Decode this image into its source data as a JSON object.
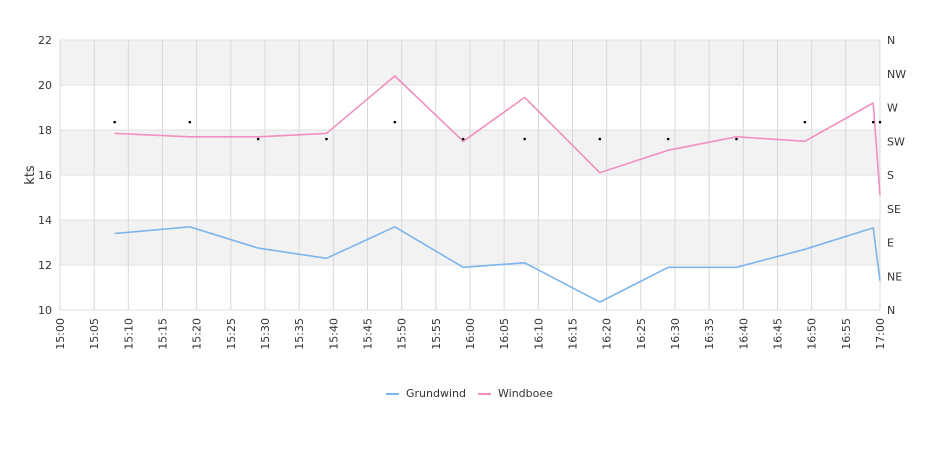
{
  "chart_data": {
    "type": "line",
    "ylabel": "kts",
    "ylim": [
      10,
      22
    ],
    "y_ticks": [
      "10",
      "12",
      "14",
      "16",
      "18",
      "20",
      "22"
    ],
    "x_ticks": [
      "15:00",
      "15:05",
      "15:10",
      "15:15",
      "15:20",
      "15:25",
      "15:30",
      "15:35",
      "15:40",
      "15:45",
      "15:50",
      "15:55",
      "16:00",
      "16:05",
      "16:10",
      "16:15",
      "16:20",
      "16:25",
      "16:30",
      "16:35",
      "16:40",
      "16:45",
      "16:50",
      "16:55",
      "17:00"
    ],
    "x_range_minutes": [
      0,
      120
    ],
    "right_axis_labels": [
      "N",
      "NE",
      "E",
      "SE",
      "S",
      "SW",
      "W",
      "NW",
      "N"
    ],
    "grid": true,
    "alternating_bands": true,
    "legend_position": "bottom-center",
    "series": [
      {
        "name": "Grundwind",
        "color": "#7cb5ec",
        "x": [
          8,
          19,
          29,
          39,
          49,
          59,
          68,
          79,
          89,
          99,
          109,
          119,
          120
        ],
        "values": [
          13.4,
          13.7,
          12.75,
          12.3,
          13.7,
          11.9,
          12.1,
          10.35,
          11.9,
          11.9,
          12.7,
          13.65,
          11.3
        ]
      },
      {
        "name": "Windboee",
        "color": "#f28fc0",
        "x": [
          8,
          19,
          29,
          39,
          49,
          59,
          68,
          79,
          89,
          99,
          109,
          119,
          120
        ],
        "values": [
          17.85,
          17.7,
          17.7,
          17.85,
          20.4,
          17.5,
          19.45,
          16.1,
          17.1,
          17.7,
          17.5,
          19.2,
          15.1
        ]
      }
    ],
    "direction_marks": {
      "x": [
        8,
        19,
        29,
        39,
        49,
        59,
        68,
        79,
        89,
        99,
        109,
        119,
        120
      ],
      "values": [
        18.35,
        18.35,
        17.6,
        17.6,
        18.35,
        17.6,
        17.6,
        17.6,
        17.6,
        17.6,
        18.35,
        18.35,
        18.35
      ]
    }
  }
}
